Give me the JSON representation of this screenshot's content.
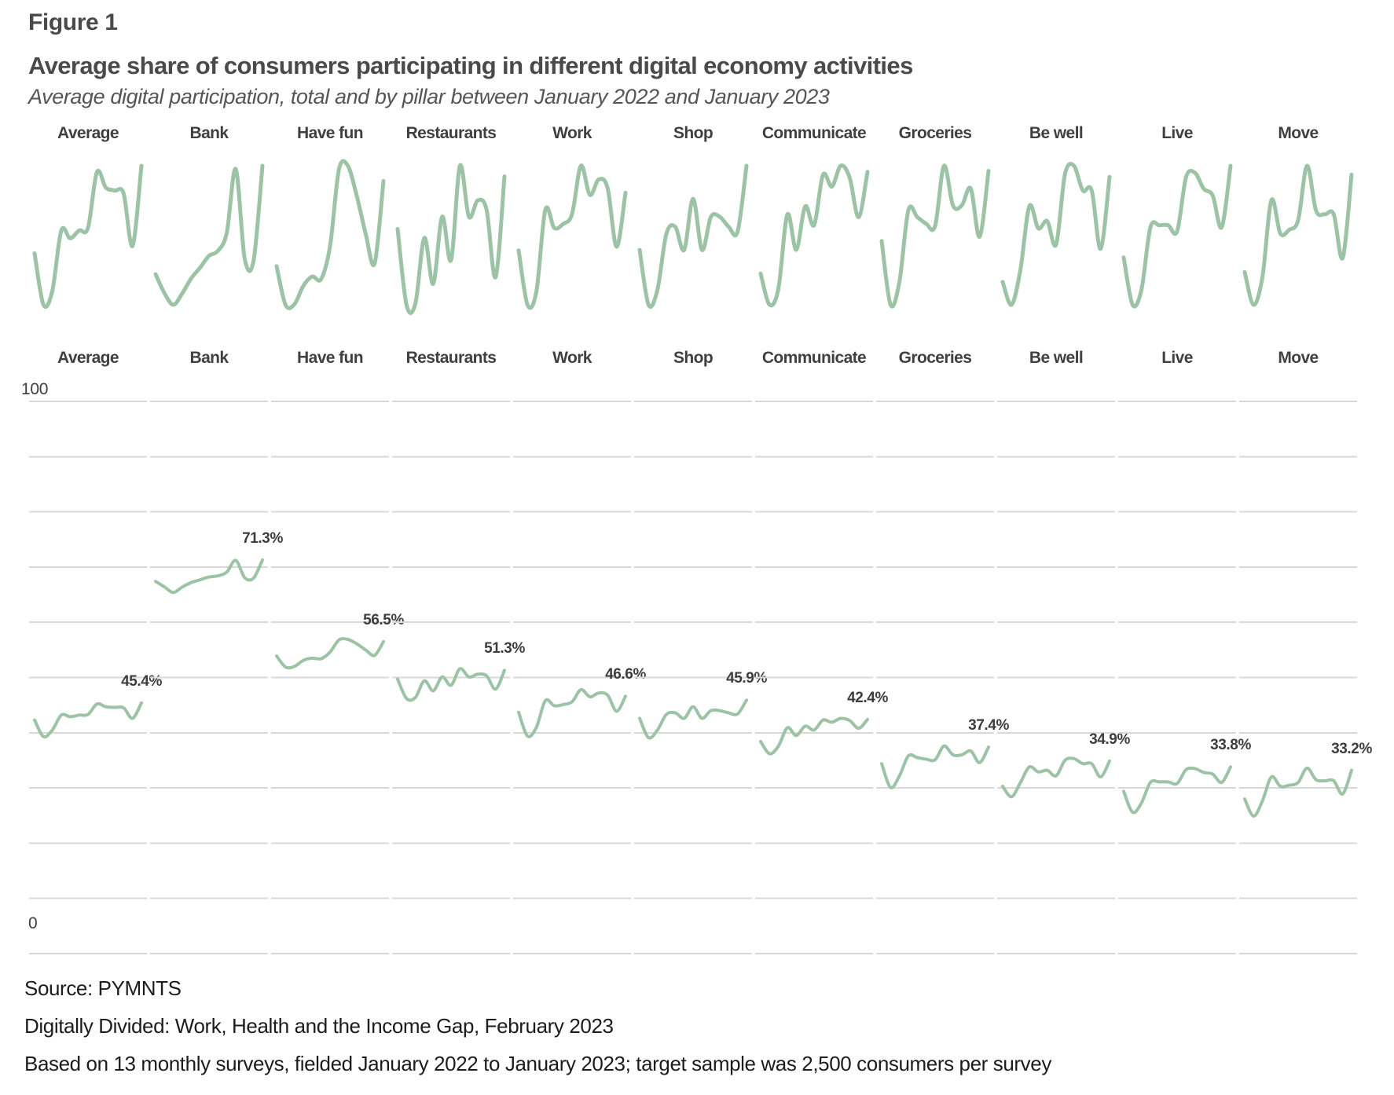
{
  "figure": {
    "label": "Figure 1",
    "title": "Average share of consumers participating in different digital economy activities",
    "subtitle": "Average digital participation, total and by pillar between January 2022 and January 2023"
  },
  "colors": {
    "line": "#9cc3a5",
    "grid": "#d8d8d8",
    "header_text": "#404040",
    "value_label_text": "#3d3d3d",
    "title_text": "#4a4a4a",
    "footer_text": "#1c1c1c"
  },
  "axis": {
    "top_label": "100",
    "bottom_label": "0",
    "min": 0,
    "max": 100,
    "grid_step": 10
  },
  "chart_data": {
    "type": "line",
    "small_multiples": true,
    "title": "Average share of consumers participating in different digital economy activities",
    "subtitle": "Average digital participation, total and by pillar between January 2022 and January 2023",
    "xlabel": "",
    "ylabel": "",
    "ylim": [
      0,
      100
    ],
    "grid": true,
    "n_points_per_series": 13,
    "period": "January 2022 to January 2023",
    "rows": [
      "normalized sparkline",
      "shared 0-100 scale"
    ],
    "series": [
      {
        "name": "Average",
        "end_label": "45.4%",
        "end_value": 45.4,
        "values": [
          42.3,
          39.3,
          40.5,
          43.2,
          42.9,
          43.2,
          43.3,
          45.2,
          44.7,
          44.6,
          44.5,
          42.6,
          45.4
        ]
      },
      {
        "name": "Bank",
        "end_label": "71.3%",
        "end_value": 71.3,
        "values": [
          67.4,
          66.4,
          65.4,
          66.4,
          67.2,
          67.7,
          68.2,
          68.4,
          69.1,
          71.2,
          68.1,
          68.0,
          71.3
        ]
      },
      {
        "name": "Have fun",
        "end_label": "56.5%",
        "end_value": 56.5,
        "values": [
          53.9,
          51.9,
          52.0,
          53.1,
          53.5,
          53.4,
          54.6,
          56.8,
          56.9,
          56.1,
          55.0,
          54.0,
          56.5
        ]
      },
      {
        "name": "Restaurants",
        "end_label": "51.3%",
        "end_value": 51.3,
        "values": [
          49.7,
          46.2,
          46.4,
          49.4,
          47.6,
          50.1,
          48.6,
          51.6,
          50.1,
          50.6,
          50.3,
          47.9,
          51.3
        ]
      },
      {
        "name": "Work",
        "end_label": "46.6%",
        "end_value": 46.6,
        "values": [
          43.7,
          39.4,
          41.0,
          45.8,
          44.9,
          45.1,
          45.6,
          47.8,
          46.5,
          47.2,
          46.8,
          43.9,
          46.6
        ]
      },
      {
        "name": "Shop",
        "end_label": "45.9%",
        "end_value": 45.9,
        "values": [
          42.6,
          39.1,
          40.5,
          43.3,
          43.6,
          42.6,
          44.7,
          42.6,
          44.0,
          44.0,
          43.6,
          43.4,
          45.9
        ]
      },
      {
        "name": "Communicate",
        "end_label": "42.4%",
        "end_value": 42.4,
        "values": [
          38.4,
          36.2,
          37.6,
          40.9,
          39.5,
          41.2,
          40.5,
          42.3,
          41.9,
          42.6,
          42.2,
          40.8,
          42.4
        ]
      },
      {
        "name": "Groceries",
        "end_label": "37.4%",
        "end_value": 37.4,
        "values": [
          34.4,
          30.1,
          32.2,
          35.8,
          35.5,
          35.2,
          35.1,
          37.6,
          36.0,
          36.0,
          36.7,
          34.6,
          37.4
        ]
      },
      {
        "name": "Be well",
        "end_label": "34.9%",
        "end_value": 34.9,
        "values": [
          30.3,
          28.4,
          31.0,
          33.8,
          32.9,
          33.2,
          32.2,
          35.0,
          35.3,
          34.4,
          34.4,
          32.0,
          34.9
        ]
      },
      {
        "name": "Live",
        "end_label": "33.8%",
        "end_value": 33.8,
        "values": [
          29.4,
          25.6,
          27.3,
          31.0,
          31.1,
          31.1,
          30.8,
          33.3,
          33.5,
          32.8,
          32.5,
          31.0,
          33.8
        ]
      },
      {
        "name": "Move",
        "end_label": "33.2%",
        "end_value": 33.2,
        "values": [
          28.0,
          24.9,
          27.7,
          32.0,
          30.3,
          30.5,
          31.0,
          33.6,
          31.5,
          31.3,
          31.3,
          28.9,
          33.2
        ]
      }
    ]
  },
  "footer": {
    "lines": [
      "Source: PYMNTS",
      "Digitally Divided: Work, Health and the Income Gap, February 2023",
      "Based on 13 monthly surveys, fielded January 2022 to January 2023; target sample was 2,500 consumers per survey"
    ]
  }
}
